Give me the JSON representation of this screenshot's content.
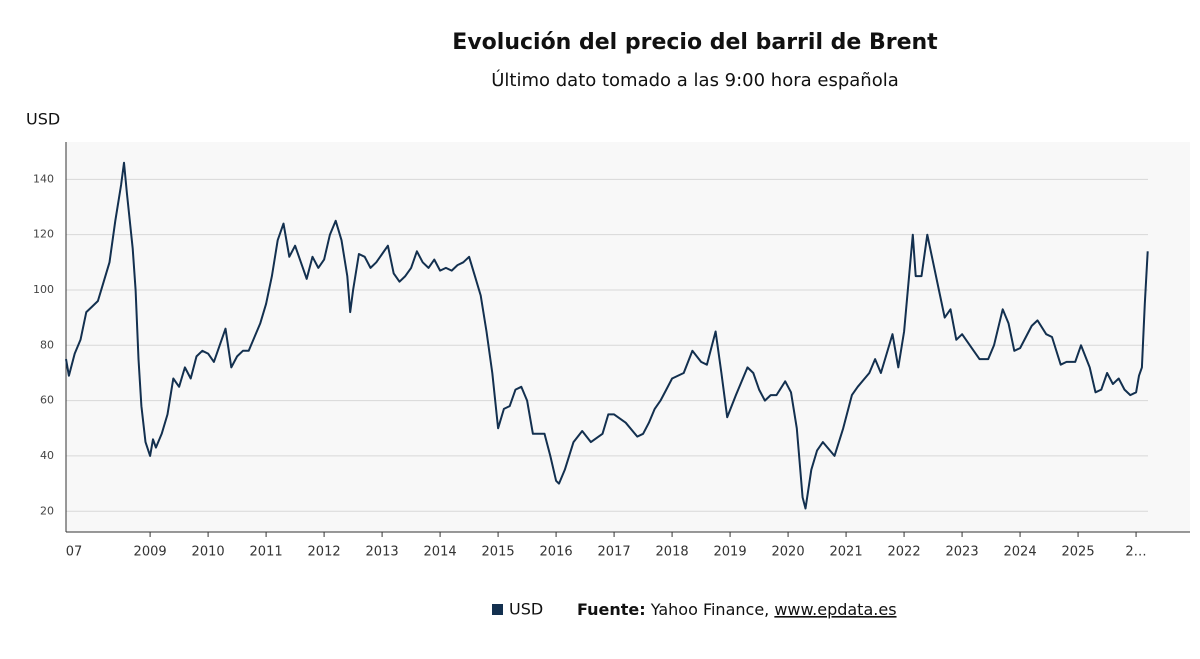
{
  "chart_data": {
    "type": "line",
    "title": "Evolución del precio del barril de Brent",
    "subtitle": "Último dato tomado a las 9:00 hora española",
    "y_label": "USD",
    "source_label": "Fuente:",
    "source_text": "Yahoo Finance,",
    "source_link": "www.epdata.es",
    "xlim": [
      2007.55,
      2026.93
    ],
    "ylim": [
      12.5,
      153.5
    ],
    "xticks": [
      {
        "value": 2007,
        "label": "07"
      },
      2009,
      2010,
      2011,
      2012,
      2013,
      2014,
      2015,
      2016,
      2017,
      2018,
      2019,
      2020,
      2021,
      2022,
      2023,
      2024,
      2025,
      {
        "value": 2026,
        "label": "2…"
      }
    ],
    "yticks": [
      20,
      40,
      60,
      80,
      100,
      120,
      140
    ],
    "grid": true,
    "legend": "bottom",
    "x": [
      2007.55,
      2007.6,
      2007.7,
      2007.8,
      2007.9,
      2008.0,
      2008.1,
      2008.2,
      2008.3,
      2008.4,
      2008.5,
      2008.55,
      2008.6,
      2008.7,
      2008.75,
      2008.8,
      2008.85,
      2008.92,
      2009.0,
      2009.05,
      2009.1,
      2009.2,
      2009.3,
      2009.4,
      2009.5,
      2009.6,
      2009.7,
      2009.8,
      2009.9,
      2010.0,
      2010.1,
      2010.2,
      2010.3,
      2010.4,
      2010.5,
      2010.6,
      2010.7,
      2010.8,
      2010.9,
      2011.0,
      2011.1,
      2011.2,
      2011.3,
      2011.4,
      2011.5,
      2011.6,
      2011.7,
      2011.8,
      2011.9,
      2012.0,
      2012.1,
      2012.2,
      2012.3,
      2012.4,
      2012.45,
      2012.5,
      2012.6,
      2012.7,
      2012.8,
      2012.9,
      2013.0,
      2013.1,
      2013.2,
      2013.3,
      2013.4,
      2013.5,
      2013.6,
      2013.7,
      2013.8,
      2013.9,
      2014.0,
      2014.1,
      2014.2,
      2014.3,
      2014.4,
      2014.5,
      2014.6,
      2014.7,
      2014.8,
      2014.9,
      2015.0,
      2015.1,
      2015.2,
      2015.3,
      2015.4,
      2015.5,
      2015.6,
      2015.7,
      2015.8,
      2015.9,
      2016.0,
      2016.05,
      2016.15,
      2016.3,
      2016.45,
      2016.6,
      2016.8,
      2016.9,
      2017.0,
      2017.2,
      2017.4,
      2017.5,
      2017.6,
      2017.7,
      2017.8,
      2017.9,
      2018.0,
      2018.2,
      2018.35,
      2018.5,
      2018.6,
      2018.75,
      2018.85,
      2018.95,
      2019.1,
      2019.3,
      2019.4,
      2019.5,
      2019.6,
      2019.7,
      2019.8,
      2019.95,
      2020.05,
      2020.15,
      2020.25,
      2020.3,
      2020.4,
      2020.5,
      2020.6,
      2020.8,
      2020.95,
      2021.1,
      2021.2,
      2021.4,
      2021.5,
      2021.6,
      2021.8,
      2021.9,
      2022.0,
      2022.15,
      2022.2,
      2022.3,
      2022.4,
      2022.5,
      2022.6,
      2022.7,
      2022.8,
      2022.9,
      2023.0,
      2023.2,
      2023.3,
      2023.45,
      2023.55,
      2023.7,
      2023.8,
      2023.9,
      2024.0,
      2024.2,
      2024.3,
      2024.45,
      2024.55,
      2024.7,
      2024.8,
      2024.95,
      2025.05,
      2025.2,
      2025.3,
      2025.4,
      2025.5,
      2025.6,
      2025.7,
      2025.8,
      2025.9,
      2026.0,
      2026.05,
      2026.1,
      2026.15,
      2026.2
    ],
    "series": [
      {
        "name": "USD",
        "color": "#13304f",
        "values": [
          75,
          69,
          77,
          82,
          92,
          94,
          96,
          103,
          110,
          125,
          138,
          146,
          135,
          115,
          100,
          75,
          58,
          45,
          40,
          46,
          43,
          48,
          55,
          68,
          65,
          72,
          68,
          76,
          78,
          77,
          74,
          80,
          86,
          72,
          76,
          78,
          78,
          83,
          88,
          95,
          105,
          118,
          124,
          112,
          116,
          110,
          104,
          112,
          108,
          111,
          120,
          125,
          118,
          105,
          92,
          100,
          113,
          112,
          108,
          110,
          113,
          116,
          106,
          103,
          105,
          108,
          114,
          110,
          108,
          111,
          107,
          108,
          107,
          109,
          110,
          112,
          105,
          98,
          85,
          70,
          50,
          57,
          58,
          64,
          65,
          60,
          48,
          48,
          48,
          40,
          31,
          30,
          35,
          45,
          49,
          45,
          48,
          55,
          55,
          52,
          47,
          48,
          52,
          57,
          60,
          64,
          68,
          70,
          78,
          74,
          73,
          85,
          70,
          54,
          62,
          72,
          70,
          64,
          60,
          62,
          62,
          67,
          63,
          50,
          25,
          21,
          35,
          42,
          45,
          40,
          50,
          62,
          65,
          70,
          75,
          70,
          84,
          72,
          85,
          120,
          105,
          105,
          120,
          110,
          100,
          90,
          93,
          82,
          84,
          78,
          75,
          75,
          80,
          93,
          88,
          78,
          79,
          87,
          89,
          84,
          83,
          73,
          74,
          74,
          80,
          72,
          63,
          64,
          70,
          66,
          68,
          64,
          62,
          63,
          69,
          72,
          95,
          114
        ]
      }
    ]
  }
}
